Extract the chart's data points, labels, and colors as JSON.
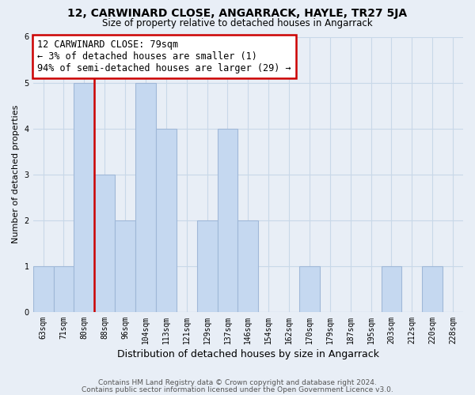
{
  "title1": "12, CARWINARD CLOSE, ANGARRACK, HAYLE, TR27 5JA",
  "title2": "Size of property relative to detached houses in Angarrack",
  "xlabel": "Distribution of detached houses by size in Angarrack",
  "ylabel": "Number of detached properties",
  "footer1": "Contains HM Land Registry data © Crown copyright and database right 2024.",
  "footer2": "Contains public sector information licensed under the Open Government Licence v3.0.",
  "bin_labels": [
    "63sqm",
    "71sqm",
    "80sqm",
    "88sqm",
    "96sqm",
    "104sqm",
    "113sqm",
    "121sqm",
    "129sqm",
    "137sqm",
    "146sqm",
    "154sqm",
    "162sqm",
    "170sqm",
    "179sqm",
    "187sqm",
    "195sqm",
    "203sqm",
    "212sqm",
    "220sqm",
    "228sqm"
  ],
  "bar_values": [
    1,
    1,
    5,
    3,
    2,
    5,
    4,
    0,
    2,
    4,
    2,
    0,
    0,
    1,
    0,
    0,
    0,
    1,
    0,
    1,
    0
  ],
  "bar_color": "#c5d8f0",
  "bar_edge_color": "#a0b8d8",
  "red_line_x": 2.5,
  "highlight_edge_color": "#cc0000",
  "annotation_text": "12 CARWINARD CLOSE: 79sqm\n← 3% of detached houses are smaller (1)\n94% of semi-detached houses are larger (29) →",
  "annotation_box_color": "white",
  "annotation_box_edge_color": "#cc0000",
  "ylim": [
    0,
    6
  ],
  "yticks": [
    0,
    1,
    2,
    3,
    4,
    5,
    6
  ],
  "grid_color": "#c8d8e8",
  "background_color": "#e8eef6"
}
